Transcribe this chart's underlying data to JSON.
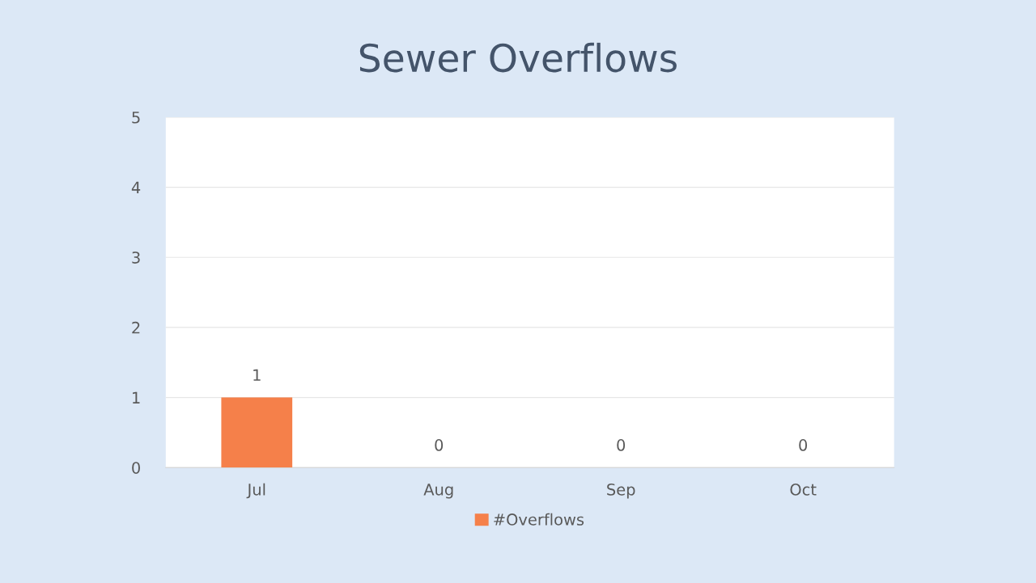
{
  "chart_data": {
    "type": "bar",
    "title": "Sewer Overflows",
    "categories": [
      "Jul",
      "Aug",
      "Sep",
      "Oct"
    ],
    "series": [
      {
        "name": "#Overflows",
        "color": "#f5804a",
        "values": [
          1,
          0,
          0,
          0
        ]
      }
    ],
    "ylim": [
      0,
      5
    ],
    "yticks": [
      0,
      1,
      2,
      3,
      4,
      5
    ],
    "grid": "y",
    "legend": "bottom",
    "data_labels": true
  }
}
